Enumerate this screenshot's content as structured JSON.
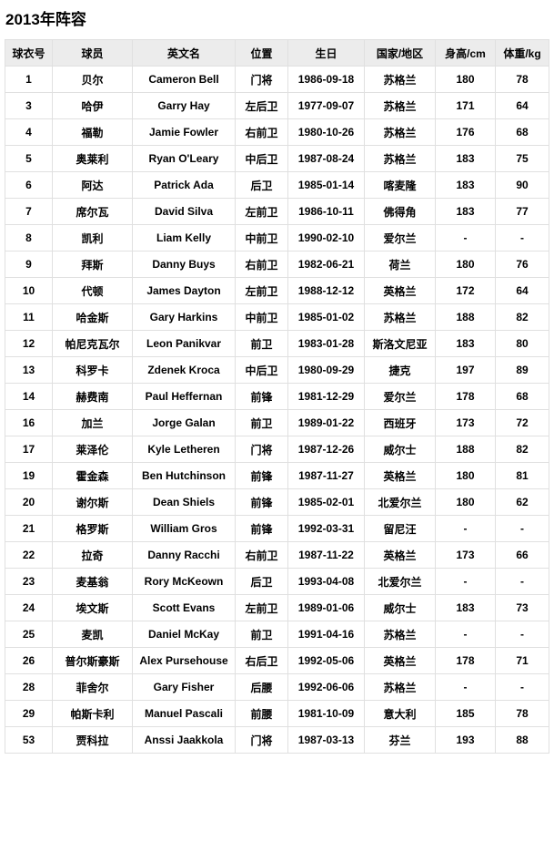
{
  "page": {
    "title": "2013年阵容"
  },
  "colors": {
    "header_bg": "#ececec",
    "border": "#e0e0e0",
    "text": "#000000"
  },
  "table": {
    "headers": [
      "球衣号",
      "球员",
      "英文名",
      "位置",
      "生日",
      "国家/地区",
      "身高/cm",
      "体重/kg"
    ],
    "rows": [
      [
        "1",
        "贝尔",
        "Cameron Bell",
        "门将",
        "1986-09-18",
        "苏格兰",
        "180",
        "78"
      ],
      [
        "3",
        "哈伊",
        "Garry Hay",
        "左后卫",
        "1977-09-07",
        "苏格兰",
        "171",
        "64"
      ],
      [
        "4",
        "福勒",
        "Jamie Fowler",
        "右前卫",
        "1980-10-26",
        "苏格兰",
        "176",
        "68"
      ],
      [
        "5",
        "奥莱利",
        "Ryan O'Leary",
        "中后卫",
        "1987-08-24",
        "苏格兰",
        "183",
        "75"
      ],
      [
        "6",
        "阿达",
        "Patrick Ada",
        "后卫",
        "1985-01-14",
        "喀麦隆",
        "183",
        "90"
      ],
      [
        "7",
        "席尔瓦",
        "David Silva",
        "左前卫",
        "1986-10-11",
        "佛得角",
        "183",
        "77"
      ],
      [
        "8",
        "凯利",
        "Liam Kelly",
        "中前卫",
        "1990-02-10",
        "爱尔兰",
        "-",
        "-"
      ],
      [
        "9",
        "拜斯",
        "Danny Buys",
        "右前卫",
        "1982-06-21",
        "荷兰",
        "180",
        "76"
      ],
      [
        "10",
        "代顿",
        "James Dayton",
        "左前卫",
        "1988-12-12",
        "英格兰",
        "172",
        "64"
      ],
      [
        "11",
        "哈金斯",
        "Gary Harkins",
        "中前卫",
        "1985-01-02",
        "苏格兰",
        "188",
        "82"
      ],
      [
        "12",
        "帕尼克瓦尔",
        "Leon Panikvar",
        "前卫",
        "1983-01-28",
        "斯洛文尼亚",
        "183",
        "80"
      ],
      [
        "13",
        "科罗卡",
        "Zdenek Kroca",
        "中后卫",
        "1980-09-29",
        "捷克",
        "197",
        "89"
      ],
      [
        "14",
        "赫费南",
        "Paul Heffernan",
        "前锋",
        "1981-12-29",
        "爱尔兰",
        "178",
        "68"
      ],
      [
        "16",
        "加兰",
        "Jorge Galan",
        "前卫",
        "1989-01-22",
        "西班牙",
        "173",
        "72"
      ],
      [
        "17",
        "莱泽伦",
        "Kyle Letheren",
        "门将",
        "1987-12-26",
        "威尔士",
        "188",
        "82"
      ],
      [
        "19",
        "霍金森",
        "Ben Hutchinson",
        "前锋",
        "1987-11-27",
        "英格兰",
        "180",
        "81"
      ],
      [
        "20",
        "谢尔斯",
        "Dean Shiels",
        "前锋",
        "1985-02-01",
        "北爱尔兰",
        "180",
        "62"
      ],
      [
        "21",
        "格罗斯",
        "William Gros",
        "前锋",
        "1992-03-31",
        "留尼汪",
        "-",
        "-"
      ],
      [
        "22",
        "拉奇",
        "Danny Racchi",
        "右前卫",
        "1987-11-22",
        "英格兰",
        "173",
        "66"
      ],
      [
        "23",
        "麦基翁",
        "Rory McKeown",
        "后卫",
        "1993-04-08",
        "北爱尔兰",
        "-",
        "-"
      ],
      [
        "24",
        "埃文斯",
        "Scott Evans",
        "左前卫",
        "1989-01-06",
        "威尔士",
        "183",
        "73"
      ],
      [
        "25",
        "麦凯",
        "Daniel McKay",
        "前卫",
        "1991-04-16",
        "苏格兰",
        "-",
        "-"
      ],
      [
        "26",
        "普尔斯豪斯",
        "Alex Pursehouse",
        "右后卫",
        "1992-05-06",
        "英格兰",
        "178",
        "71"
      ],
      [
        "28",
        "菲舍尔",
        "Gary Fisher",
        "后腰",
        "1992-06-06",
        "苏格兰",
        "-",
        "-"
      ],
      [
        "29",
        "帕斯卡利",
        "Manuel Pascali",
        "前腰",
        "1981-10-09",
        "意大利",
        "185",
        "78"
      ],
      [
        "53",
        "贾科拉",
        "Anssi Jaakkola",
        "门将",
        "1987-03-13",
        "芬兰",
        "193",
        "88"
      ]
    ]
  }
}
